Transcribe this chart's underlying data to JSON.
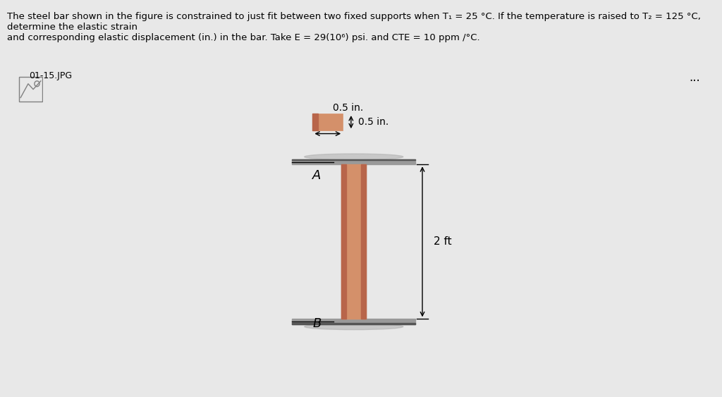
{
  "bg_color": "#f5f5dc",
  "page_bg": "#e8e8e8",
  "border_color": "#5599cc",
  "title_text": "The steel bar shown in the figure is constrained to just fit between two fixed supports when T₁ = 25 °C. If the temperature is raised to T₂ = 125 °C, determine the elastic strain\nand corresponding elastic displacement (in.) in the bar. Take E = 29(10⁶) psi. and CTE = 10 ppm /°C.",
  "file_label": "01-15.JPG",
  "dim_05_in_top": "0.5 in.",
  "dim_05_in_right": "0.5 in.",
  "dim_2ft": "2 ft",
  "label_A": "A",
  "label_B": "B",
  "bar_color_light": "#d4906a",
  "bar_color_dark": "#b8654a",
  "plate_color": "#888888",
  "plate_shadow": "#aaaaaa"
}
